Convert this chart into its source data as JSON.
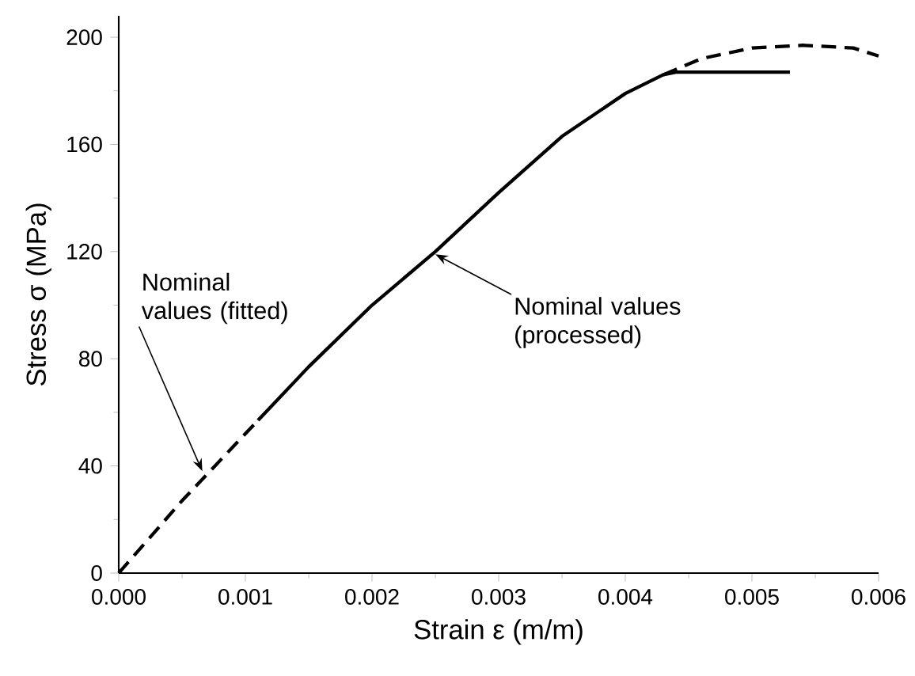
{
  "chart_data": {
    "type": "line",
    "xlabel": "Strain ε (m/m)",
    "ylabel": "Stress σ (MPa)",
    "xlim": [
      0,
      0.006
    ],
    "ylim": [
      0,
      208
    ],
    "xticks": [
      {
        "value": 0,
        "label": "0.000"
      },
      {
        "value": 0.001,
        "label": "0.001"
      },
      {
        "value": 0.002,
        "label": "0.002"
      },
      {
        "value": 0.003,
        "label": "0.003"
      },
      {
        "value": 0.004,
        "label": "0.004"
      },
      {
        "value": 0.005,
        "label": "0.005"
      },
      {
        "value": 0.006,
        "label": "0.006"
      }
    ],
    "yticks": [
      0,
      40,
      80,
      120,
      160,
      200
    ],
    "series": [
      {
        "color": "#000000",
        "line_style": "dashed",
        "x": [
          0,
          0.0005,
          0.0011,
          0.0027,
          0.0043,
          0.0046,
          0.005,
          0.0054,
          0.0058,
          0.006
        ],
        "values": [
          0,
          27,
          57,
          null,
          186,
          192,
          196,
          197,
          196,
          193
        ]
      },
      {
        "color": "#000000",
        "line_style": "solid",
        "x": [
          0.0011,
          0.0015,
          0.002,
          0.0025,
          0.003,
          0.0035,
          0.004,
          0.0043,
          0.0044,
          0.0053
        ],
        "values": [
          57,
          77,
          100,
          120,
          142,
          163,
          179,
          186,
          187,
          187
        ]
      }
    ],
    "annotations": [
      {
        "text": "Nominal values (fitted)",
        "x": 0.00066,
        "y": 38
      },
      {
        "text": "Nominal values (processed)",
        "x": 0.0025,
        "y": 119
      }
    ]
  }
}
